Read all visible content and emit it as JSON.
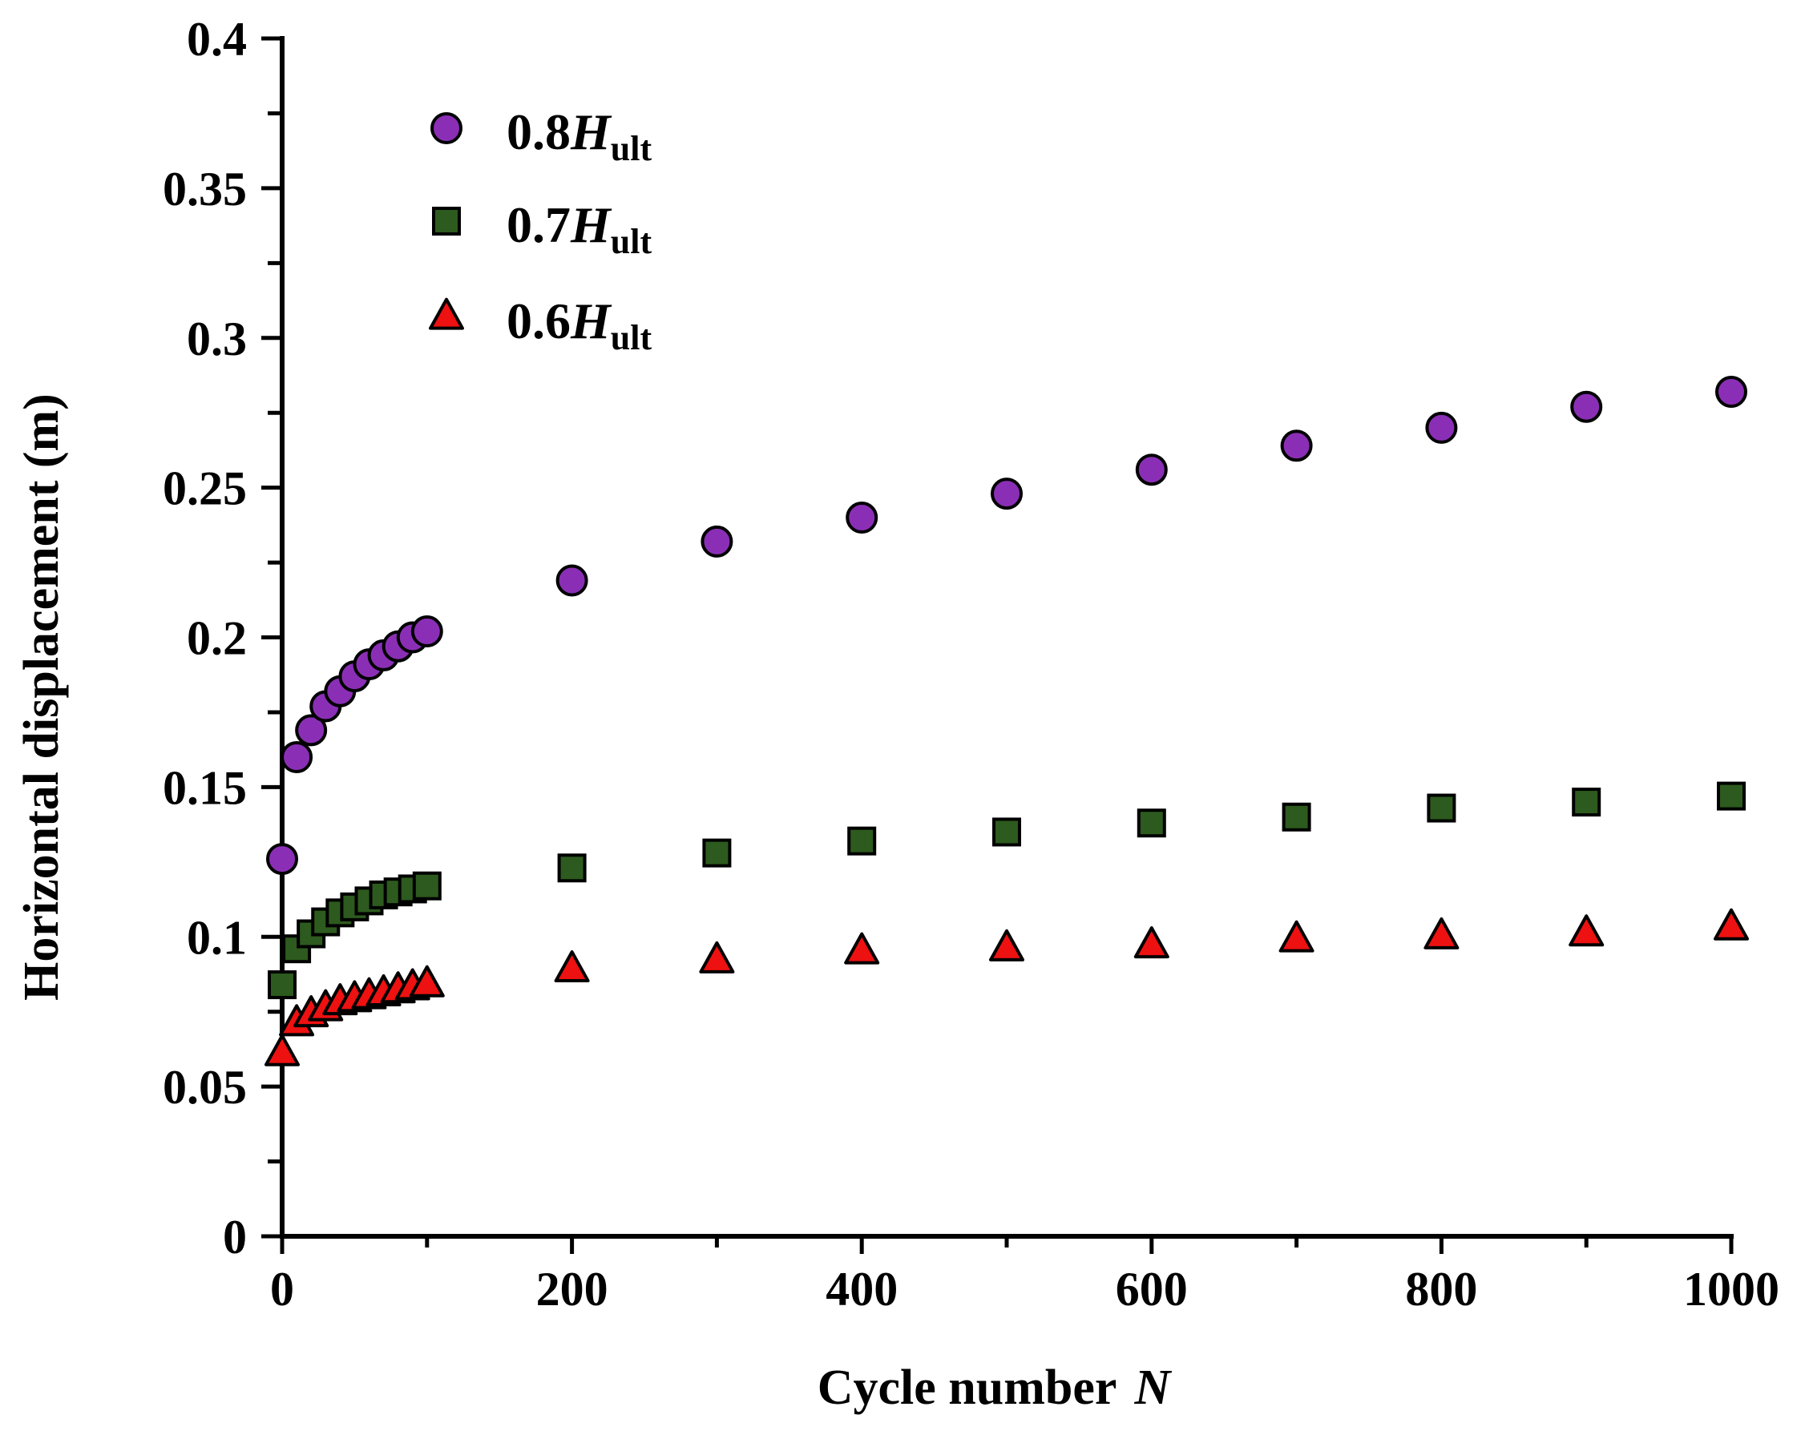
{
  "chart_data": {
    "type": "scatter",
    "title": "",
    "xlabel": "Cycle number",
    "xlabel_var": "N",
    "ylabel": "Horizontal displacement (m)",
    "xlim": [
      0,
      1000
    ],
    "ylim": [
      0,
      0.4
    ],
    "x_ticks": [
      "0",
      "200",
      "400",
      "600",
      "800",
      "1000"
    ],
    "y_ticks": [
      "0",
      "0.05",
      "0.1",
      "0.15",
      "0.2",
      "0.25",
      "0.3",
      "0.35",
      "0.4"
    ],
    "grid": false,
    "legend_position": "top-left",
    "series": [
      {
        "name": "0.8Hult",
        "label_coef": "0.8",
        "label_var": "H",
        "label_sub": "ult",
        "marker": "circle",
        "color": "#8a2fb5",
        "x": [
          0,
          10,
          20,
          30,
          40,
          50,
          60,
          70,
          80,
          90,
          100,
          200,
          300,
          400,
          500,
          600,
          700,
          800,
          900,
          1000
        ],
        "y": [
          0.126,
          0.16,
          0.169,
          0.177,
          0.182,
          0.187,
          0.191,
          0.194,
          0.197,
          0.2,
          0.202,
          0.219,
          0.232,
          0.24,
          0.248,
          0.256,
          0.264,
          0.27,
          0.277,
          0.282
        ]
      },
      {
        "name": "0.7Hult",
        "label_coef": "0.7",
        "label_var": "H",
        "label_sub": "ult",
        "marker": "square",
        "color": "#2d5a1e",
        "x": [
          0,
          10,
          20,
          30,
          40,
          50,
          60,
          70,
          80,
          90,
          100,
          200,
          300,
          400,
          500,
          600,
          700,
          800,
          900,
          1000
        ],
        "y": [
          0.084,
          0.096,
          0.101,
          0.105,
          0.108,
          0.11,
          0.112,
          0.114,
          0.115,
          0.116,
          0.117,
          0.123,
          0.128,
          0.132,
          0.135,
          0.138,
          0.14,
          0.143,
          0.145,
          0.147
        ]
      },
      {
        "name": "0.6Hult",
        "label_coef": "0.6",
        "label_var": "H",
        "label_sub": "ult",
        "marker": "triangle",
        "color": "#ee1111",
        "x": [
          0,
          10,
          20,
          30,
          40,
          50,
          60,
          70,
          80,
          90,
          100,
          200,
          300,
          400,
          500,
          600,
          700,
          800,
          900,
          1000
        ],
        "y": [
          0.061,
          0.071,
          0.074,
          0.076,
          0.078,
          0.079,
          0.08,
          0.081,
          0.082,
          0.083,
          0.084,
          0.089,
          0.092,
          0.095,
          0.096,
          0.097,
          0.099,
          0.1,
          0.101,
          0.103
        ]
      }
    ]
  }
}
